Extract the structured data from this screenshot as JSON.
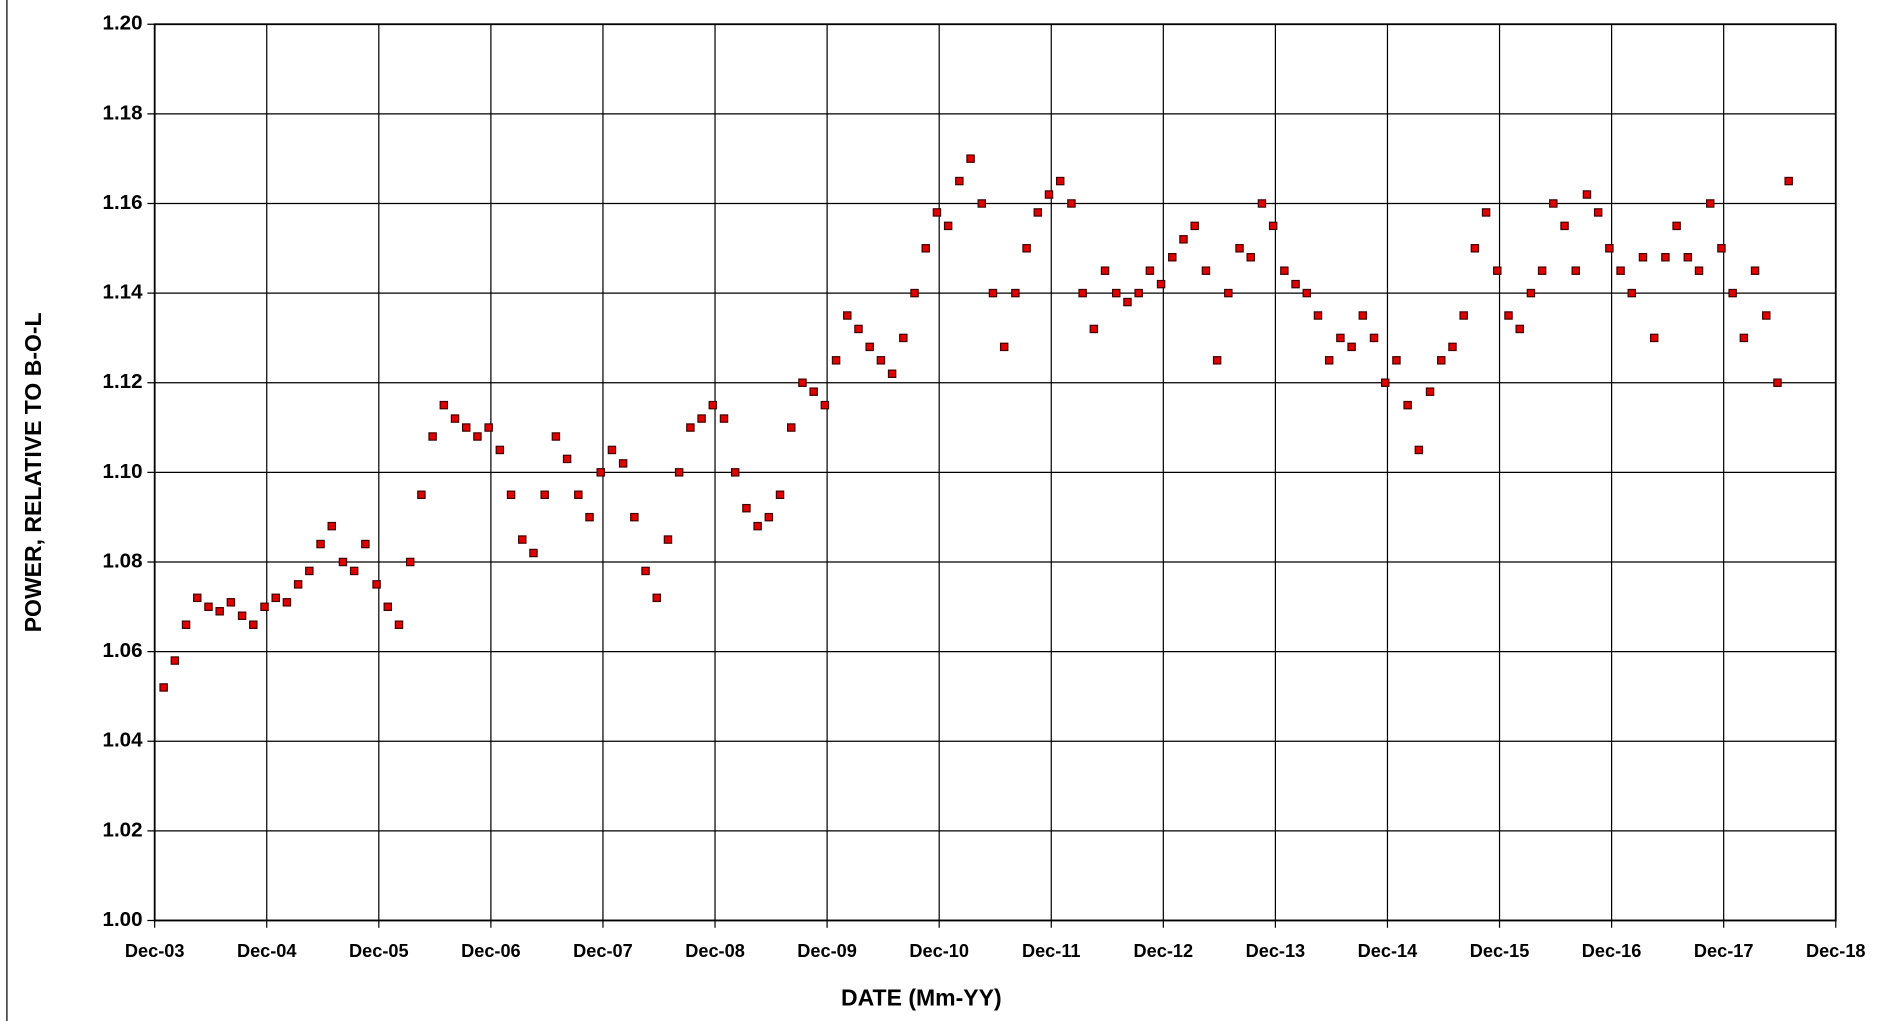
{
  "chart_data": {
    "type": "scatter",
    "x_label": "DATE (Mm-YY)",
    "y_label": "POWER, RELATIVE TO B-O-L",
    "grid": true,
    "xlim": [
      2003.92,
      2018.92
    ],
    "xticks": [
      {
        "value": 2003.92,
        "label": "Dec-03"
      },
      {
        "value": 2004.92,
        "label": "Dec-04"
      },
      {
        "value": 2005.92,
        "label": "Dec-05"
      },
      {
        "value": 2006.92,
        "label": "Dec-06"
      },
      {
        "value": 2007.92,
        "label": "Dec-07"
      },
      {
        "value": 2008.92,
        "label": "Dec-08"
      },
      {
        "value": 2009.92,
        "label": "Dec-09"
      },
      {
        "value": 2010.92,
        "label": "Dec-10"
      },
      {
        "value": 2011.92,
        "label": "Dec-11"
      },
      {
        "value": 2012.92,
        "label": "Dec-12"
      },
      {
        "value": 2013.92,
        "label": "Dec-13"
      },
      {
        "value": 2014.92,
        "label": "Dec-14"
      },
      {
        "value": 2015.92,
        "label": "Dec-15"
      },
      {
        "value": 2016.92,
        "label": "Dec-16"
      },
      {
        "value": 2017.92,
        "label": "Dec-17"
      },
      {
        "value": 2018.92,
        "label": "Dec-18"
      }
    ],
    "ylim": [
      1.0,
      1.2
    ],
    "yticks": [
      {
        "value": 1.0,
        "label": "1.00"
      },
      {
        "value": 1.02,
        "label": "1.02"
      },
      {
        "value": 1.04,
        "label": "1.04"
      },
      {
        "value": 1.06,
        "label": "1.06"
      },
      {
        "value": 1.08,
        "label": "1.08"
      },
      {
        "value": 1.1,
        "label": "1.10"
      },
      {
        "value": 1.12,
        "label": "1.12"
      },
      {
        "value": 1.14,
        "label": "1.14"
      },
      {
        "value": 1.16,
        "label": "1.16"
      },
      {
        "value": 1.18,
        "label": "1.18"
      },
      {
        "value": 1.2,
        "label": "1.20"
      }
    ],
    "color": "#e00000",
    "x": [
      2004.0,
      2004.1,
      2004.2,
      2004.3,
      2004.4,
      2004.5,
      2004.6,
      2004.7,
      2004.8,
      2004.9,
      2005.0,
      2005.1,
      2005.2,
      2005.3,
      2005.4,
      2005.5,
      2005.6,
      2005.7,
      2005.8,
      2005.9,
      2006.0,
      2006.1,
      2006.2,
      2006.3,
      2006.4,
      2006.5,
      2006.6,
      2006.7,
      2006.8,
      2006.9,
      2007.0,
      2007.1,
      2007.2,
      2007.3,
      2007.4,
      2007.5,
      2007.6,
      2007.7,
      2007.8,
      2007.9,
      2008.0,
      2008.1,
      2008.2,
      2008.3,
      2008.4,
      2008.5,
      2008.6,
      2008.7,
      2008.8,
      2008.9,
      2009.0,
      2009.1,
      2009.2,
      2009.3,
      2009.4,
      2009.5,
      2009.6,
      2009.7,
      2009.8,
      2009.9,
      2010.0,
      2010.1,
      2010.2,
      2010.3,
      2010.4,
      2010.5,
      2010.6,
      2010.7,
      2010.8,
      2010.9,
      2011.0,
      2011.1,
      2011.2,
      2011.3,
      2011.4,
      2011.5,
      2011.6,
      2011.7,
      2011.8,
      2011.9,
      2012.0,
      2012.1,
      2012.2,
      2012.3,
      2012.4,
      2012.5,
      2012.6,
      2012.7,
      2012.8,
      2012.9,
      2013.0,
      2013.1,
      2013.2,
      2013.3,
      2013.4,
      2013.5,
      2013.6,
      2013.7,
      2013.8,
      2013.9,
      2014.0,
      2014.1,
      2014.2,
      2014.3,
      2014.4,
      2014.5,
      2014.6,
      2014.7,
      2014.8,
      2014.9,
      2015.0,
      2015.1,
      2015.2,
      2015.3,
      2015.4,
      2015.5,
      2015.6,
      2015.7,
      2015.8,
      2015.9,
      2016.0,
      2016.1,
      2016.2,
      2016.3,
      2016.4,
      2016.5,
      2016.6,
      2016.7,
      2016.8,
      2016.9,
      2017.0,
      2017.1,
      2017.2,
      2017.3,
      2017.4,
      2017.5,
      2017.6,
      2017.7,
      2017.8,
      2017.9,
      2018.0,
      2018.1,
      2018.2,
      2018.3,
      2018.4,
      2018.5
    ],
    "values": [
      1.052,
      1.058,
      1.066,
      1.072,
      1.07,
      1.069,
      1.071,
      1.068,
      1.066,
      1.07,
      1.072,
      1.071,
      1.075,
      1.078,
      1.084,
      1.088,
      1.08,
      1.078,
      1.084,
      1.075,
      1.07,
      1.066,
      1.08,
      1.095,
      1.108,
      1.115,
      1.112,
      1.11,
      1.108,
      1.11,
      1.105,
      1.095,
      1.085,
      1.082,
      1.095,
      1.108,
      1.103,
      1.095,
      1.09,
      1.1,
      1.105,
      1.102,
      1.09,
      1.078,
      1.072,
      1.085,
      1.1,
      1.11,
      1.112,
      1.115,
      1.112,
      1.1,
      1.092,
      1.088,
      1.09,
      1.095,
      1.11,
      1.12,
      1.118,
      1.115,
      1.125,
      1.135,
      1.132,
      1.128,
      1.125,
      1.122,
      1.13,
      1.14,
      1.15,
      1.158,
      1.155,
      1.165,
      1.17,
      1.16,
      1.14,
      1.128,
      1.14,
      1.15,
      1.158,
      1.162,
      1.165,
      1.16,
      1.14,
      1.132,
      1.145,
      1.14,
      1.138,
      1.14,
      1.145,
      1.142,
      1.148,
      1.152,
      1.155,
      1.145,
      1.125,
      1.14,
      1.15,
      1.148,
      1.16,
      1.155,
      1.145,
      1.142,
      1.14,
      1.135,
      1.125,
      1.13,
      1.128,
      1.135,
      1.13,
      1.12,
      1.125,
      1.115,
      1.105,
      1.118,
      1.125,
      1.128,
      1.135,
      1.15,
      1.158,
      1.145,
      1.135,
      1.132,
      1.14,
      1.145,
      1.16,
      1.155,
      1.145,
      1.162,
      1.158,
      1.15,
      1.145,
      1.14,
      1.148,
      1.13,
      1.148,
      1.155,
      1.148,
      1.145,
      1.16,
      1.15,
      1.14,
      1.13,
      1.145,
      1.135,
      1.12,
      1.165
    ]
  }
}
